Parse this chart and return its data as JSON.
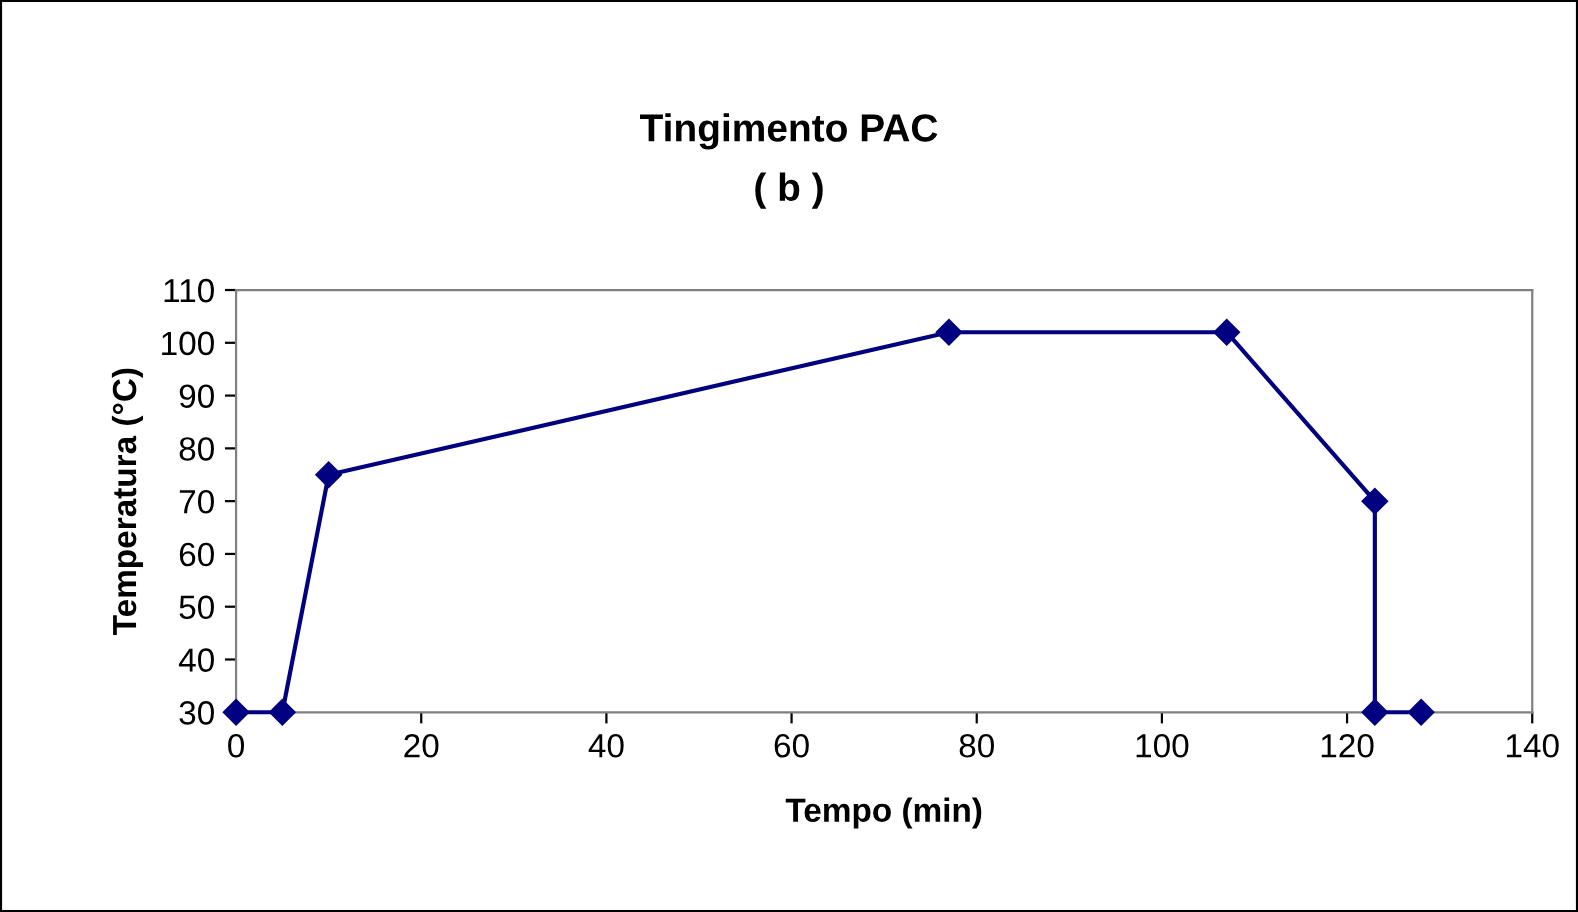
{
  "chart_data": {
    "type": "line",
    "title": "Tingimento PAC",
    "subtitle": "( b )",
    "xlabel": "Tempo (min)",
    "ylabel": "Temperatura (°C)",
    "x": [
      0,
      5,
      10,
      77,
      107,
      123,
      123,
      128
    ],
    "series": [
      {
        "color": "#000080",
        "values": [
          30,
          30,
          75,
          102,
          102,
          70,
          30,
          30
        ]
      }
    ],
    "xlim": [
      0,
      140
    ],
    "xticks": [
      0,
      20,
      40,
      60,
      80,
      100,
      120,
      140
    ],
    "ylim": [
      30,
      110
    ],
    "yticks": [
      30,
      40,
      50,
      60,
      70,
      80,
      90,
      100,
      110
    ],
    "grid": false,
    "legend": false,
    "marker": "diamond",
    "line_style": "solid"
  }
}
